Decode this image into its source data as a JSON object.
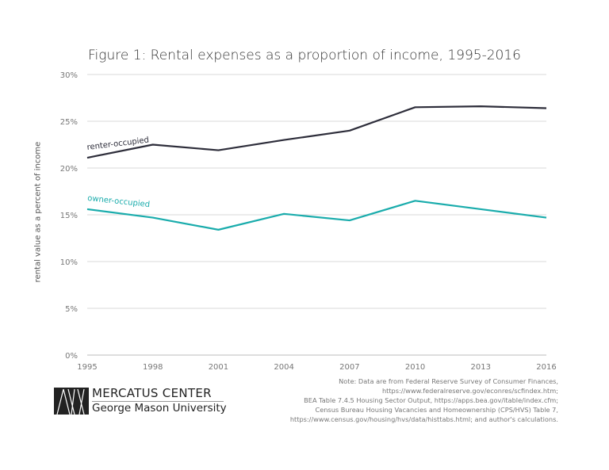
{
  "chart_data": {
    "type": "line",
    "title": "Figure 1: Rental expenses as a proportion of income, 1995-2016",
    "xlabel": "",
    "ylabel": "rental value as a percent of income",
    "x": [
      1995,
      1998,
      2001,
      2004,
      2007,
      2010,
      2013,
      2016
    ],
    "x_tick_labels": [
      "1995",
      "1998",
      "2001",
      "2004",
      "2007",
      "2010",
      "2013",
      "2016"
    ],
    "y_tick_labels": [
      "0%",
      "5%",
      "10%",
      "15%",
      "20%",
      "25%",
      "30%"
    ],
    "ylim": [
      0,
      30
    ],
    "grid": "horizontal",
    "series": [
      {
        "name": "renter-occupied",
        "color": "#2d2d3a",
        "values": [
          21.1,
          22.5,
          21.9,
          23.0,
          24.0,
          26.5,
          26.6,
          26.4
        ]
      },
      {
        "name": "owner-occupied",
        "color": "#1aacac",
        "values": [
          15.6,
          14.7,
          13.4,
          15.1,
          14.4,
          16.5,
          15.6,
          14.7
        ]
      }
    ]
  },
  "note": "Note: Data are from Federal Reserve Survey of Consumer Finances,\nhttps://www.federalreserve.gov/econres/scfindex.htm;\nBEA Table 7.4.5 Housing Sector Output, https://apps.bea.gov/itable/index.cfm;\nCensus Bureau Housing Vacancies and Homeownership (CPS/HVS) Table 7,\nhttps://www.census.gov/housing/hvs/data/histtabs.html; and author's calculations.",
  "logo": {
    "line1": "MERCATUS CENTER",
    "line2": "George Mason University"
  }
}
